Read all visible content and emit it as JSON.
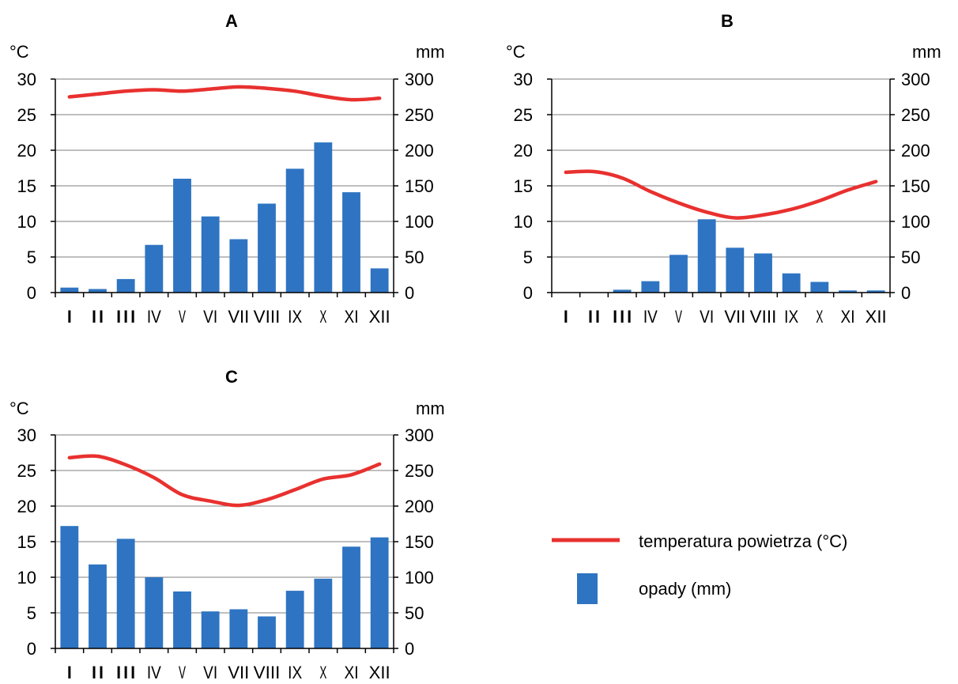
{
  "legend": {
    "temperature_label": "temperatura powietrza (°C)",
    "precipitation_label": "opady (mm)"
  },
  "colors": {
    "temperature_line": "#e8312f",
    "precipitation_bar": "#2e74c2"
  },
  "chart_data": [
    {
      "type": "bar",
      "title": "A",
      "categories": [
        "I",
        "II",
        "III",
        "IV",
        "V",
        "VI",
        "VII",
        "VIII",
        "IX",
        "X",
        "XI",
        "XII"
      ],
      "left_axis": {
        "unit": "°C",
        "ylim": [
          0,
          30
        ],
        "ticks": [
          "0",
          "5",
          "10",
          "15",
          "20",
          "25",
          "30"
        ]
      },
      "right_axis": {
        "unit": "mm",
        "ylim": [
          0,
          300
        ],
        "ticks": [
          "0",
          "50",
          "100",
          "150",
          "200",
          "250",
          "300"
        ]
      },
      "grid": true,
      "series": [
        {
          "name": "opady (mm)",
          "kind": "bar",
          "axis": "right",
          "values": [
            7,
            5,
            19,
            67,
            160,
            107,
            75,
            125,
            174,
            211,
            141,
            34
          ]
        },
        {
          "name": "temperatura powietrza (°C)",
          "kind": "line",
          "axis": "left",
          "values": [
            27.5,
            27.9,
            28.3,
            28.5,
            28.3,
            28.6,
            28.9,
            28.7,
            28.3,
            27.6,
            27.1,
            27.3
          ]
        }
      ]
    },
    {
      "type": "bar",
      "title": "B",
      "categories": [
        "I",
        "II",
        "III",
        "IV",
        "V",
        "VI",
        "VII",
        "VIII",
        "IX",
        "X",
        "XI",
        "XII"
      ],
      "left_axis": {
        "unit": "°C",
        "ylim": [
          0,
          30
        ],
        "ticks": [
          "0",
          "5",
          "10",
          "15",
          "20",
          "25",
          "30"
        ]
      },
      "right_axis": {
        "unit": "mm",
        "ylim": [
          0,
          300
        ],
        "ticks": [
          "0",
          "50",
          "100",
          "150",
          "200",
          "250",
          "300"
        ]
      },
      "grid": true,
      "series": [
        {
          "name": "opady (mm)",
          "kind": "bar",
          "axis": "right",
          "values": [
            0,
            0,
            4,
            16,
            53,
            103,
            63,
            55,
            27,
            15,
            3,
            3
          ]
        },
        {
          "name": "temperatura powietrza (°C)",
          "kind": "line",
          "axis": "left",
          "values": [
            16.9,
            17.0,
            16.1,
            14.2,
            12.6,
            11.3,
            10.5,
            10.9,
            11.7,
            12.9,
            14.4,
            15.6
          ]
        }
      ]
    },
    {
      "type": "bar",
      "title": "C",
      "categories": [
        "I",
        "II",
        "III",
        "IV",
        "V",
        "VI",
        "VII",
        "VIII",
        "IX",
        "X",
        "XI",
        "XII"
      ],
      "left_axis": {
        "unit": "°C",
        "ylim": [
          0,
          30
        ],
        "ticks": [
          "0",
          "5",
          "10",
          "15",
          "20",
          "25",
          "30"
        ]
      },
      "right_axis": {
        "unit": "mm",
        "ylim": [
          0,
          300
        ],
        "ticks": [
          "0",
          "50",
          "100",
          "150",
          "200",
          "250",
          "300"
        ]
      },
      "grid": true,
      "series": [
        {
          "name": "opady (mm)",
          "kind": "bar",
          "axis": "right",
          "values": [
            172,
            118,
            154,
            100,
            80,
            52,
            55,
            45,
            81,
            98,
            143,
            156
          ]
        },
        {
          "name": "temperatura powietrza (°C)",
          "kind": "line",
          "axis": "left",
          "values": [
            26.8,
            27.0,
            25.8,
            24.0,
            21.6,
            20.7,
            20.1,
            20.9,
            22.3,
            23.8,
            24.4,
            25.9
          ]
        }
      ]
    }
  ]
}
